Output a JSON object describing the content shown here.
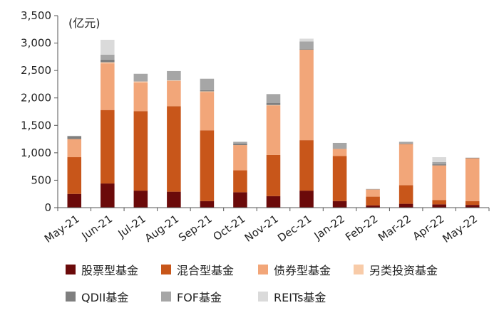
{
  "chart_data": {
    "type": "bar",
    "stacked": true,
    "unit_label": "(亿元)",
    "categories": [
      "May-21",
      "Jun-21",
      "Jul-21",
      "Aug-21",
      "Sep-21",
      "Oct-21",
      "Nov-21",
      "Dec-21",
      "Jan-22",
      "Feb-22",
      "Mar-22",
      "Apr-22",
      "May-22"
    ],
    "ylim": [
      0,
      3500
    ],
    "yticks": [
      0,
      500,
      1000,
      1500,
      2000,
      2500,
      3000,
      3500
    ],
    "ytick_labels": [
      "0",
      "500",
      "1,000",
      "1,500",
      "2,000",
      "2,500",
      "3,000",
      "3,500"
    ],
    "grid": false,
    "legend_position": "bottom",
    "series": [
      {
        "name": "股票型基金",
        "color": "#6b0a0a",
        "values": [
          250,
          440,
          310,
          290,
          120,
          280,
          210,
          310,
          120,
          40,
          70,
          60,
          50
        ]
      },
      {
        "name": "混合型基金",
        "color": "#c8561a",
        "values": [
          670,
          1340,
          1450,
          1560,
          1290,
          400,
          750,
          920,
          820,
          160,
          340,
          80,
          70
        ]
      },
      {
        "name": "债券型基金",
        "color": "#f2a679",
        "values": [
          330,
          850,
          520,
          460,
          700,
          460,
          900,
          1650,
          130,
          130,
          750,
          630,
          780
        ]
      },
      {
        "name": "另类投资基金",
        "color": "#f8cba8",
        "values": [
          0,
          20,
          20,
          10,
          10,
          0,
          10,
          0,
          0,
          0,
          0,
          0,
          0
        ]
      },
      {
        "name": "QDII基金",
        "color": "#7f7f7f",
        "values": [
          50,
          50,
          0,
          0,
          20,
          30,
          40,
          10,
          0,
          0,
          10,
          20,
          10
        ]
      },
      {
        "name": "FOF基金",
        "color": "#a6a6a6",
        "values": [
          10,
          90,
          140,
          170,
          210,
          30,
          160,
          140,
          110,
          10,
          30,
          40,
          0
        ]
      },
      {
        "name": "REITs基金",
        "color": "#dadada",
        "values": [
          0,
          270,
          0,
          0,
          0,
          0,
          0,
          50,
          0,
          0,
          0,
          90,
          0
        ]
      }
    ]
  }
}
